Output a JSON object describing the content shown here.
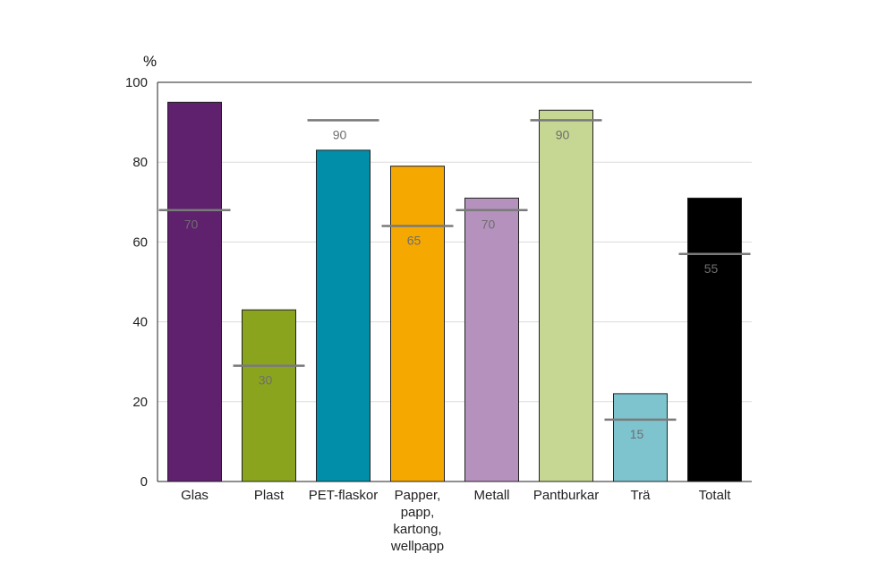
{
  "chart_data": {
    "type": "bar",
    "ylabel": "%",
    "ylim": [
      0,
      100
    ],
    "yticks": [
      0,
      20,
      40,
      60,
      80,
      100
    ],
    "grid": true,
    "categories": [
      [
        "Glas"
      ],
      [
        "Plast"
      ],
      [
        "PET-flaskor"
      ],
      [
        "Papper,",
        "papp,",
        "kartong,",
        "wellpapp"
      ],
      [
        "Metall"
      ],
      [
        "Pantburkar"
      ],
      [
        "Trä"
      ],
      [
        "Totalt"
      ]
    ],
    "values": [
      95,
      43,
      83,
      79,
      71,
      93,
      22,
      71
    ],
    "targets": [
      68,
      29,
      90.5,
      64,
      68,
      90.5,
      15.5,
      57
    ],
    "target_labels": [
      "70",
      "30",
      "90",
      "65",
      "70",
      "90",
      "15",
      "55"
    ],
    "colors": [
      "#5f206e",
      "#8aa51d",
      "#008ea9",
      "#f5a800",
      "#b592bd",
      "#c6d693",
      "#7ec4cf",
      "#000000"
    ],
    "target_color": "#7a7a7a"
  }
}
